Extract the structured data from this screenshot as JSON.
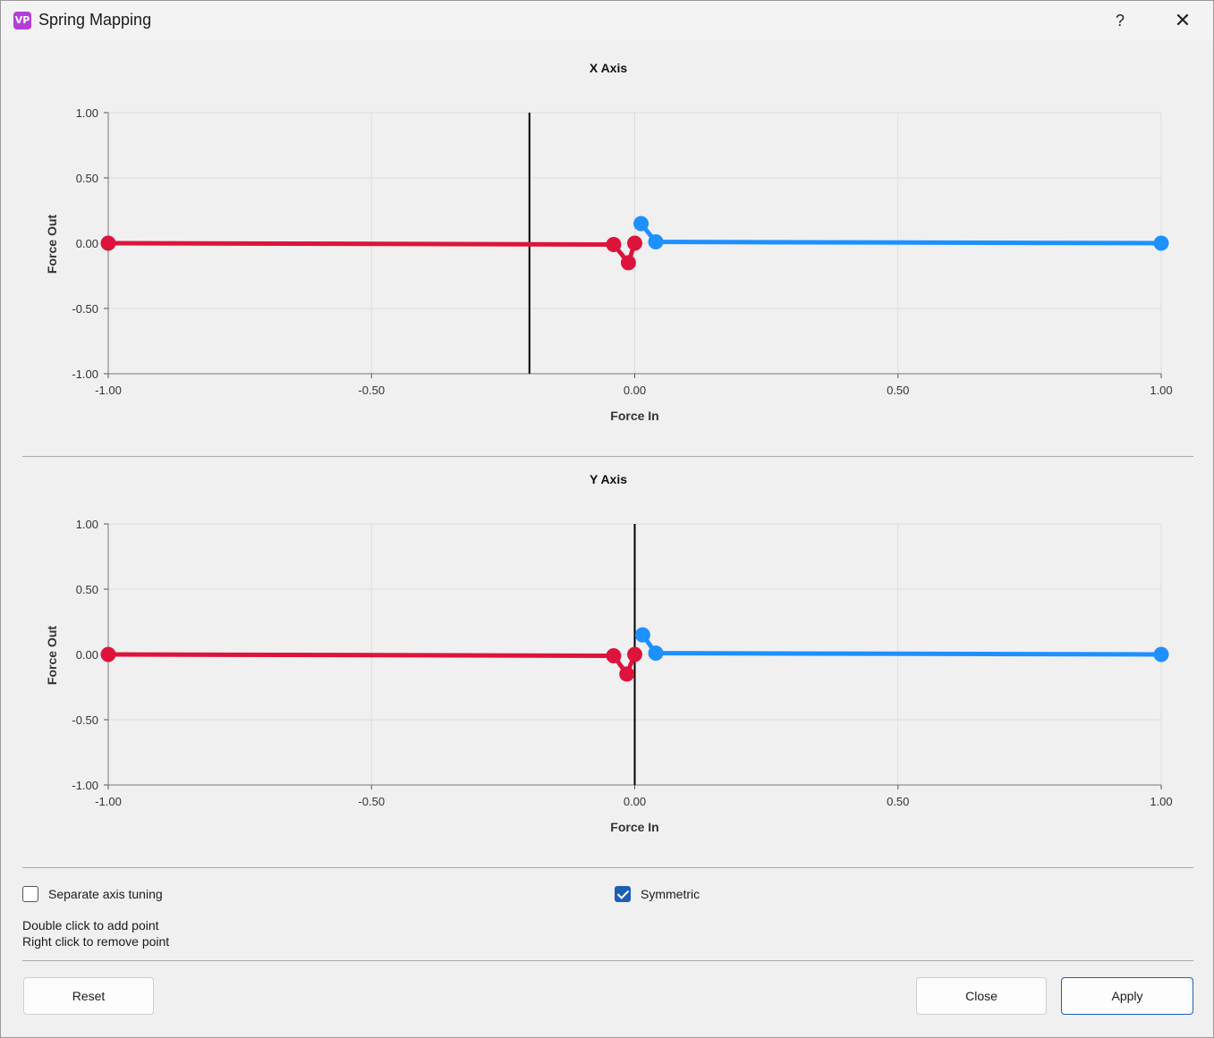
{
  "window": {
    "title": "Spring Mapping",
    "help_label": "?",
    "close_label": "✕"
  },
  "charts": [
    {
      "title": "X Axis",
      "xlabel": "Force In",
      "ylabel": "Force Out",
      "x_ticks": [
        "-1.00",
        "-0.50",
        "0.00",
        "0.50",
        "1.00"
      ],
      "y_ticks": [
        "1.00",
        "0.50",
        "0.00",
        "-0.50",
        "-1.00"
      ]
    },
    {
      "title": "Y Axis",
      "xlabel": "Force In",
      "ylabel": "Force Out",
      "x_ticks": [
        "-1.00",
        "-0.50",
        "0.00",
        "0.50",
        "1.00"
      ],
      "y_ticks": [
        "1.00",
        "0.50",
        "0.00",
        "-0.50",
        "-1.00"
      ]
    }
  ],
  "chart_data": [
    {
      "type": "line",
      "title": "X Axis",
      "xlabel": "Force In",
      "ylabel": "Force Out",
      "xlim": [
        -1,
        1
      ],
      "ylim": [
        -1,
        1
      ],
      "grid": true,
      "cursor_x": -0.2,
      "series": [
        {
          "color": "#dc143c",
          "x": [
            -1.0,
            -0.04,
            -0.012,
            0.0
          ],
          "y": [
            0.0,
            -0.01,
            -0.15,
            0.0
          ]
        },
        {
          "color": "#1e90ff",
          "x": [
            0.012,
            0.04,
            1.0
          ],
          "y": [
            0.15,
            0.01,
            0.0
          ]
        }
      ]
    },
    {
      "type": "line",
      "title": "Y Axis",
      "xlabel": "Force In",
      "ylabel": "Force Out",
      "xlim": [
        -1,
        1
      ],
      "ylim": [
        -1,
        1
      ],
      "grid": true,
      "cursor_x": 0.0,
      "series": [
        {
          "color": "#dc143c",
          "x": [
            -1.0,
            -0.04,
            -0.015,
            0.0
          ],
          "y": [
            0.0,
            -0.01,
            -0.15,
            0.0
          ]
        },
        {
          "color": "#1e90ff",
          "x": [
            0.015,
            0.04,
            1.0
          ],
          "y": [
            0.15,
            0.01,
            0.0
          ]
        }
      ]
    }
  ],
  "options": {
    "separate_axis_label": "Separate axis tuning",
    "separate_axis_checked": false,
    "symmetric_label": "Symmetric",
    "symmetric_checked": true
  },
  "hints": {
    "line1": "Double click to add point",
    "line2": "Right click to remove point"
  },
  "buttons": {
    "reset": "Reset",
    "close": "Close",
    "apply": "Apply"
  }
}
